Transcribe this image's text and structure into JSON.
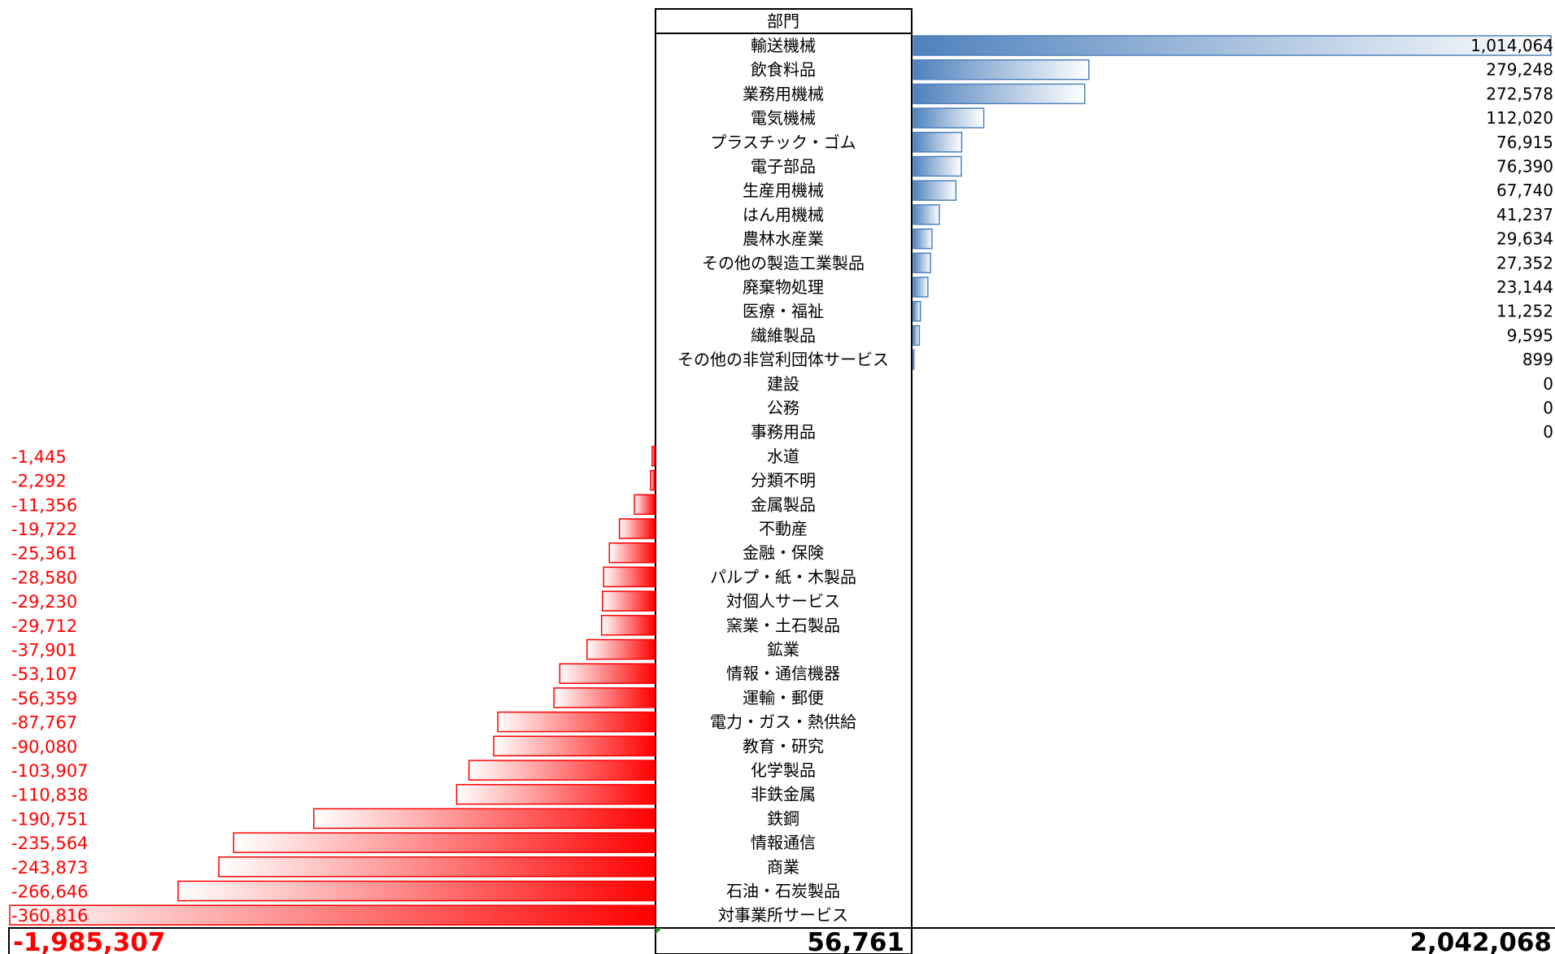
{
  "chart_data": {
    "type": "bar",
    "header": "部門",
    "positive": {
      "color": "#4f81bd",
      "items": [
        {
          "category": "輸送機械",
          "value": 1014064,
          "label": "1,014,064"
        },
        {
          "category": "飲食料品",
          "value": 279248,
          "label": "279,248"
        },
        {
          "category": "業務用機械",
          "value": 272578,
          "label": "272,578"
        },
        {
          "category": "電気機械",
          "value": 112020,
          "label": "112,020"
        },
        {
          "category": "プラスチック・ゴム",
          "value": 76915,
          "label": "76,915"
        },
        {
          "category": "電子部品",
          "value": 76390,
          "label": "76,390"
        },
        {
          "category": "生産用機械",
          "value": 67740,
          "label": "67,740"
        },
        {
          "category": "はん用機械",
          "value": 41237,
          "label": "41,237"
        },
        {
          "category": "農林水産業",
          "value": 29634,
          "label": "29,634"
        },
        {
          "category": "その他の製造工業製品",
          "value": 27352,
          "label": "27,352"
        },
        {
          "category": "廃棄物処理",
          "value": 23144,
          "label": "23,144"
        },
        {
          "category": "医療・福祉",
          "value": 11252,
          "label": "11,252"
        },
        {
          "category": "繊維製品",
          "value": 9595,
          "label": "9,595"
        },
        {
          "category": "その他の非営利団体サービス",
          "value": 899,
          "label": "899"
        },
        {
          "category": "建設",
          "value": 0,
          "label": "0"
        },
        {
          "category": "公務",
          "value": 0,
          "label": "0"
        },
        {
          "category": "事務用品",
          "value": 0,
          "label": "0"
        }
      ]
    },
    "negative": {
      "color": "#ff0000",
      "items": [
        {
          "category": "水道",
          "value": -1445,
          "label": "-1,445"
        },
        {
          "category": "分類不明",
          "value": -2292,
          "label": "-2,292"
        },
        {
          "category": "金属製品",
          "value": -11356,
          "label": "-11,356"
        },
        {
          "category": "不動産",
          "value": -19722,
          "label": "-19,722"
        },
        {
          "category": "金融・保険",
          "value": -25361,
          "label": "-25,361"
        },
        {
          "category": "パルプ・紙・木製品",
          "value": -28580,
          "label": "-28,580"
        },
        {
          "category": "対個人サービス",
          "value": -29230,
          "label": "-29,230"
        },
        {
          "category": "窯業・土石製品",
          "value": -29712,
          "label": "-29,712"
        },
        {
          "category": "鉱業",
          "value": -37901,
          "label": "-37,901"
        },
        {
          "category": "情報・通信機器",
          "value": -53107,
          "label": "-53,107"
        },
        {
          "category": "運輸・郵便",
          "value": -56359,
          "label": "-56,359"
        },
        {
          "category": "電力・ガス・熱供給",
          "value": -87767,
          "label": "-87,767"
        },
        {
          "category": "教育・研究",
          "value": -90080,
          "label": "-90,080"
        },
        {
          "category": "化学製品",
          "value": -103907,
          "label": "-103,907"
        },
        {
          "category": "非鉄金属",
          "value": -110838,
          "label": "-110,838"
        },
        {
          "category": "鉄鋼",
          "value": -190751,
          "label": "-190,751"
        },
        {
          "category": "情報通信",
          "value": -235564,
          "label": "-235,564"
        },
        {
          "category": "商業",
          "value": -243873,
          "label": "-243,873"
        },
        {
          "category": "石油・石炭製品",
          "value": -266646,
          "label": "-266,646"
        },
        {
          "category": "対事業所サービス",
          "value": -360816,
          "label": "-360,816"
        }
      ]
    },
    "totals": {
      "negative": "-1,985,307",
      "net": "56,761",
      "positive": "2,042,068"
    }
  }
}
